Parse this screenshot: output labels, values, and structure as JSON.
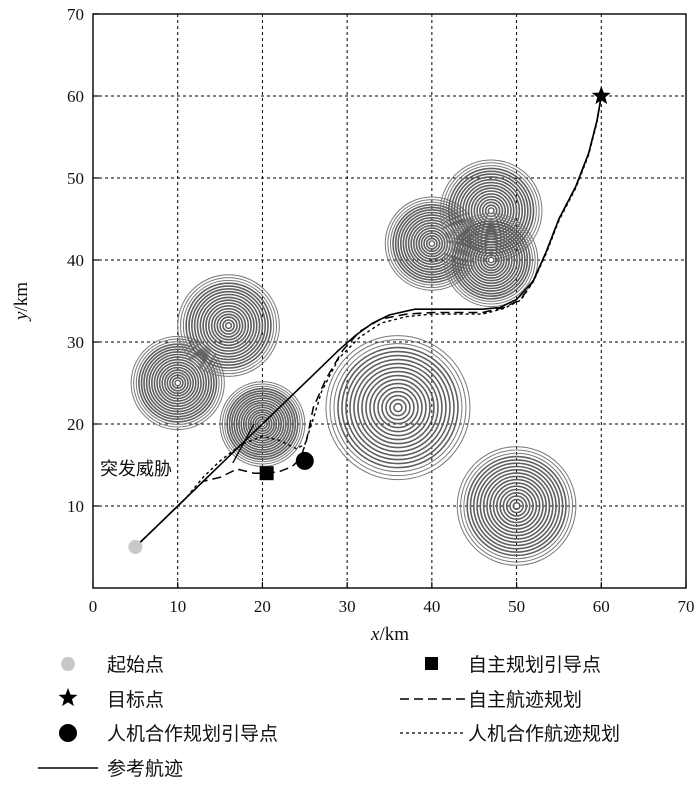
{
  "chart_data": {
    "type": "line",
    "xlabel_var": "x",
    "xlabel_unit": "/km",
    "ylabel_var": "y",
    "ylabel_unit": "/km",
    "xlim": [
      0,
      70
    ],
    "ylim": [
      0,
      70
    ],
    "xticks": [
      0,
      10,
      20,
      30,
      40,
      50,
      60,
      70
    ],
    "yticks": [
      10,
      20,
      30,
      40,
      50,
      60,
      70
    ],
    "grid": true,
    "annotation": {
      "text": "突发威胁",
      "point": [
        19,
        20
      ],
      "text_pos": [
        16.5,
        15.5
      ]
    },
    "threats": [
      {
        "center": [
          10,
          25
        ],
        "radius": 5.5
      },
      {
        "center": [
          16,
          32
        ],
        "radius": 6
      },
      {
        "center": [
          20,
          20
        ],
        "radius": 5
      },
      {
        "center": [
          36,
          22
        ],
        "radius": 8.5
      },
      {
        "center": [
          40,
          42
        ],
        "radius": 5.5
      },
      {
        "center": [
          47,
          46
        ],
        "radius": 6
      },
      {
        "center": [
          47,
          40
        ],
        "radius": 5.5
      },
      {
        "center": [
          50,
          10
        ],
        "radius": 7
      }
    ],
    "start_point": {
      "name": "起始点",
      "x": 5,
      "y": 5,
      "color": "#c8c8c8"
    },
    "target_point": {
      "name": "目标点",
      "x": 60,
      "y": 60
    },
    "auto_guide_point": {
      "name": "自主规划引导点",
      "x": 20.5,
      "y": 14
    },
    "hmc_guide_point": {
      "name": "人机合作规划引导点",
      "x": 25,
      "y": 15.5
    },
    "series": [
      {
        "name": "参考航迹",
        "style": "solid",
        "x": [
          5.5,
          8,
          11,
          14,
          17,
          20,
          23,
          26,
          29,
          31,
          33,
          35,
          38,
          40,
          42,
          44,
          46,
          48,
          50,
          52,
          53.5,
          55,
          57,
          58.5,
          59.5,
          60
        ],
        "y": [
          5.5,
          8,
          11,
          14,
          17,
          20,
          23,
          26,
          29,
          30.8,
          32.3,
          33.3,
          34,
          34,
          34,
          34,
          34,
          34.2,
          35.2,
          37.5,
          41,
          45,
          49,
          53,
          57,
          60
        ]
      },
      {
        "name": "自主航迹规划",
        "style": "dashed",
        "x": [
          5.5,
          8,
          11,
          13,
          15,
          17,
          19,
          20.5,
          22,
          23.5,
          24.5,
          25.2,
          26,
          27.5,
          29.5,
          31.5,
          34,
          37,
          40,
          43,
          46,
          48.5,
          50.5,
          52,
          53.5,
          55,
          57,
          58.5,
          59.5,
          60
        ],
        "y": [
          5.5,
          8,
          11,
          13,
          13.5,
          14.5,
          14,
          14,
          14.2,
          14.8,
          15.8,
          18,
          22,
          25.5,
          29,
          31.3,
          32.8,
          33.4,
          33.6,
          33.6,
          33.6,
          34.2,
          35.2,
          37.5,
          41,
          45,
          49,
          53,
          57,
          60
        ]
      },
      {
        "name": "人机合作航迹规划",
        "style": "dotted",
        "x": [
          5.5,
          8,
          11,
          13,
          15,
          17.5,
          20,
          22,
          24,
          25,
          25.8,
          27,
          29,
          31.5,
          34,
          37,
          40,
          43,
          46,
          48.5,
          50.5,
          52,
          53.5,
          55,
          57,
          58.5,
          59.5,
          60
        ],
        "y": [
          5.5,
          8,
          11,
          13.5,
          15.5,
          17.5,
          18.5,
          18,
          17,
          17.5,
          20,
          24,
          28,
          30.6,
          32.3,
          33.1,
          33.4,
          33.4,
          33.4,
          34.1,
          35.1,
          37.4,
          40.8,
          44.8,
          48.8,
          52.8,
          56.8,
          60
        ]
      }
    ],
    "legend": {
      "placement": "bottom",
      "entries": [
        {
          "label": "起始点",
          "kind": "circle-gray"
        },
        {
          "label": "自主规划引导点",
          "kind": "square"
        },
        {
          "label": "目标点",
          "kind": "star"
        },
        {
          "label": "自主航迹规划",
          "kind": "dashed"
        },
        {
          "label": "人机合作规划引导点",
          "kind": "circle-black"
        },
        {
          "label": "人机合作航迹规划",
          "kind": "dotted"
        },
        {
          "label": "参考航迹",
          "kind": "solid"
        }
      ]
    }
  }
}
